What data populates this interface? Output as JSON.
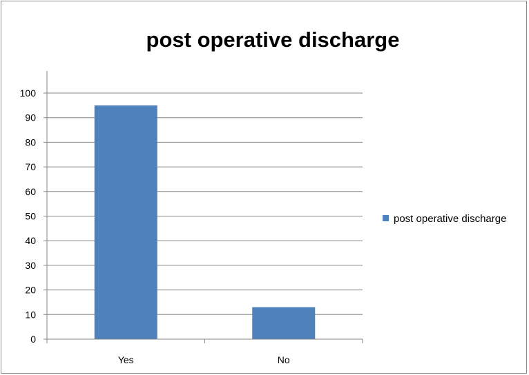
{
  "chart_data": {
    "type": "bar",
    "title": "post operative discharge",
    "xlabel": "",
    "ylabel": "",
    "categories": [
      "Yes",
      "No"
    ],
    "series": [
      {
        "name": "post operative discharge",
        "values": [
          95,
          13
        ],
        "color": "#4f81bd"
      }
    ],
    "ylim": [
      0,
      100
    ],
    "ytick_step": 10,
    "grid": true,
    "legend": "right"
  }
}
